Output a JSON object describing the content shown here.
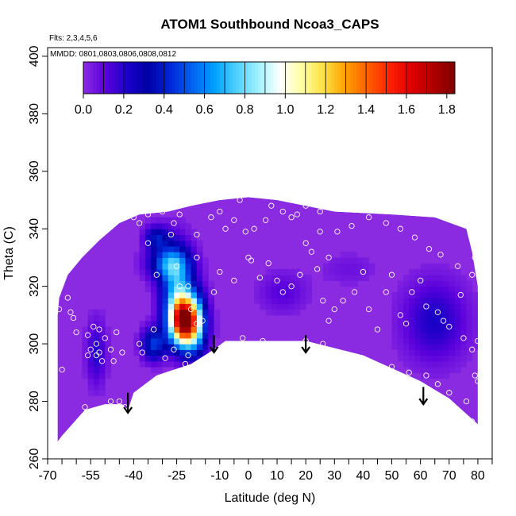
{
  "chart_data": {
    "type": "heatmap",
    "title": "ATOM1 Southbound Ncoa3_CAPS",
    "subtitle_flights": "Flts: 2,3,4,5,6",
    "subtitle_dates": "MMDD: 0801,0803,0806,0808,0812",
    "xlabel": "Latitude (deg N)",
    "ylabel": "Theta (C)",
    "xlim": [
      -70,
      85
    ],
    "ylim": [
      260,
      403
    ],
    "x_tick_labels": [
      "-70",
      "-55",
      "-40",
      "-25",
      "-10",
      "0",
      "10",
      "20",
      "30",
      "40",
      "50",
      "60",
      "70",
      "80"
    ],
    "x_tick_values": [
      -70,
      -55,
      -40,
      -25,
      -10,
      0,
      10,
      20,
      30,
      40,
      50,
      60,
      70,
      80
    ],
    "x_minor_ticks": [
      -65,
      -60,
      -50,
      -45,
      -35,
      -30,
      -20,
      -15,
      -5,
      5,
      15,
      25,
      35,
      45,
      55,
      65,
      75,
      85
    ],
    "y_tick_labels": [
      "260",
      "280",
      "300",
      "320",
      "340",
      "360",
      "380",
      "400"
    ],
    "y_tick_values": [
      260,
      280,
      300,
      320,
      340,
      360,
      380,
      400
    ],
    "colorbar": {
      "tick_labels": [
        "0.0",
        "0.2",
        "0.4",
        "0.6",
        "0.8",
        "1.0",
        "1.2",
        "1.4",
        "1.6",
        "1.8"
      ],
      "tick_values": [
        0,
        0.2,
        0.4,
        0.6,
        0.8,
        1.0,
        1.2,
        1.4,
        1.6,
        1.8
      ],
      "range": [
        0,
        1.84
      ],
      "colors": [
        "#8a2be2",
        "#5a00dc",
        "#1a00c8",
        "#0000a8",
        "#0028d8",
        "#0064f0",
        "#00a0ff",
        "#50d0ff",
        "#a0f0ff",
        "#ffffff",
        "#ffffa0",
        "#ffe040",
        "#ffa000",
        "#ff6000",
        "#ff2000",
        "#e00000",
        "#b00000",
        "#800000"
      ]
    },
    "domain_outline": [
      [
        -66.5,
        266
      ],
      [
        -65,
        268
      ],
      [
        -57,
        277
      ],
      [
        -50,
        279
      ],
      [
        -44,
        279
      ],
      [
        -42,
        277
      ],
      [
        -40,
        283
      ],
      [
        -32,
        289
      ],
      [
        -20,
        293
      ],
      [
        -12,
        298
      ],
      [
        -8,
        301
      ],
      [
        0,
        301
      ],
      [
        20,
        301
      ],
      [
        40,
        296
      ],
      [
        60,
        287
      ],
      [
        70,
        281
      ],
      [
        80,
        272
      ],
      [
        80,
        320
      ],
      [
        78,
        332
      ],
      [
        76,
        340
      ],
      [
        65,
        344
      ],
      [
        50,
        345
      ],
      [
        30,
        346
      ],
      [
        10,
        350
      ],
      [
        0,
        351
      ],
      [
        -10,
        350
      ],
      [
        -20,
        348
      ],
      [
        -28,
        346
      ],
      [
        -38,
        345
      ],
      [
        -45,
        342
      ],
      [
        -52,
        336
      ],
      [
        -58,
        330
      ],
      [
        -63,
        324
      ],
      [
        -66,
        316
      ],
      [
        -66.5,
        310
      ]
    ],
    "blobs": [
      {
        "x": -22.5,
        "y": 308,
        "sx": 3.5,
        "sy": 6,
        "amp": 1.7
      },
      {
        "x": -25,
        "y": 320,
        "sx": 4,
        "sy": 10,
        "amp": 0.55
      },
      {
        "x": -28,
        "y": 328,
        "sx": 5,
        "sy": 4,
        "amp": 0.45
      },
      {
        "x": -32,
        "y": 337,
        "sx": 3,
        "sy": 3,
        "amp": 0.35
      },
      {
        "x": -33,
        "y": 300,
        "sx": 3,
        "sy": 4,
        "amp": 0.45
      },
      {
        "x": -18,
        "y": 306,
        "sx": 3,
        "sy": 8,
        "amp": 0.45
      },
      {
        "x": -53,
        "y": 297,
        "sx": 2.5,
        "sy": 8,
        "amp": 0.2
      },
      {
        "x": 65,
        "y": 308,
        "sx": 8,
        "sy": 10,
        "amp": 0.22
      },
      {
        "x": 12,
        "y": 318,
        "sx": 6,
        "sy": 5,
        "amp": 0.12
      },
      {
        "x": 35,
        "y": 326,
        "sx": 7,
        "sy": 4,
        "amp": 0.07
      }
    ],
    "observation_points": [
      [
        -66,
        312
      ],
      [
        -65,
        291
      ],
      [
        -62,
        311
      ],
      [
        -61,
        309
      ],
      [
        -56,
        296
      ],
      [
        -56,
        303
      ],
      [
        -53,
        300
      ],
      [
        -52,
        297
      ],
      [
        -51,
        294
      ],
      [
        -48,
        298
      ],
      [
        -47,
        294
      ],
      [
        -46,
        304
      ],
      [
        -44,
        297
      ],
      [
        -43,
        278
      ],
      [
        -45,
        280
      ],
      [
        -48,
        280
      ],
      [
        -57,
        278
      ],
      [
        -54,
        306
      ],
      [
        -52,
        305
      ],
      [
        -50,
        302
      ],
      [
        -55,
        298
      ],
      [
        -53,
        296
      ],
      [
        -63,
        316
      ],
      [
        -60,
        304
      ],
      [
        -38,
        283
      ],
      [
        -37,
        297
      ],
      [
        -38,
        300
      ],
      [
        -33,
        305
      ],
      [
        -29,
        295
      ],
      [
        -26,
        298
      ],
      [
        -22,
        293
      ],
      [
        -21,
        296
      ],
      [
        -20,
        312
      ],
      [
        -18,
        307
      ],
      [
        -24,
        320
      ],
      [
        -25,
        327
      ],
      [
        -21,
        320
      ],
      [
        -16,
        308
      ],
      [
        -12,
        318
      ],
      [
        -18,
        330
      ],
      [
        -18,
        338
      ],
      [
        -27,
        338
      ],
      [
        -35,
        335
      ],
      [
        -32,
        324
      ],
      [
        -30,
        346
      ],
      [
        -26,
        342
      ],
      [
        -24,
        345
      ],
      [
        -40,
        344
      ],
      [
        -38,
        342
      ],
      [
        -35,
        345
      ],
      [
        -13,
        344
      ],
      [
        -10,
        346
      ],
      [
        -8,
        340
      ],
      [
        -5,
        343
      ],
      [
        -3,
        350
      ],
      [
        -1,
        339
      ],
      [
        2,
        340
      ],
      [
        6,
        343
      ],
      [
        8,
        348
      ],
      [
        12,
        346
      ],
      [
        15,
        344
      ],
      [
        17,
        345
      ],
      [
        20,
        348
      ],
      [
        25,
        346
      ],
      [
        -10,
        325
      ],
      [
        -5,
        322
      ],
      [
        0,
        330
      ],
      [
        1,
        329
      ],
      [
        4,
        323
      ],
      [
        7,
        328
      ],
      [
        10,
        322
      ],
      [
        12,
        318
      ],
      [
        15,
        320
      ],
      [
        18,
        324
      ],
      [
        20,
        335
      ],
      [
        22,
        332
      ],
      [
        25,
        339
      ],
      [
        26,
        315
      ],
      [
        28,
        308
      ],
      [
        30,
        312
      ],
      [
        33,
        315
      ],
      [
        37,
        318
      ],
      [
        40,
        325
      ],
      [
        42,
        312
      ],
      [
        45,
        305
      ],
      [
        48,
        318
      ],
      [
        50,
        324
      ],
      [
        53,
        310
      ],
      [
        55,
        307
      ],
      [
        -2,
        302
      ],
      [
        0,
        300
      ],
      [
        5,
        301
      ],
      [
        10,
        300
      ],
      [
        15,
        300
      ],
      [
        20,
        301
      ],
      [
        26,
        300
      ],
      [
        30,
        297
      ],
      [
        35,
        296
      ],
      [
        40,
        294
      ],
      [
        44,
        291
      ],
      [
        50,
        292
      ],
      [
        56,
        290
      ],
      [
        62,
        289
      ],
      [
        66,
        286
      ],
      [
        70,
        283
      ],
      [
        76,
        280
      ],
      [
        78,
        273
      ],
      [
        57,
        318
      ],
      [
        60,
        322
      ],
      [
        62,
        313
      ],
      [
        66,
        311
      ],
      [
        68,
        308
      ],
      [
        70,
        306
      ],
      [
        75,
        302
      ],
      [
        78,
        298
      ],
      [
        80,
        301
      ],
      [
        79,
        289
      ],
      [
        80,
        287
      ],
      [
        74,
        317
      ],
      [
        78,
        324
      ],
      [
        79,
        330
      ],
      [
        73,
        327
      ],
      [
        67,
        331
      ],
      [
        63,
        333
      ],
      [
        58,
        337
      ],
      [
        53,
        340
      ],
      [
        48,
        342
      ],
      [
        42,
        344
      ],
      [
        36,
        341
      ],
      [
        31,
        339
      ],
      [
        28,
        330
      ],
      [
        24,
        326
      ]
    ],
    "arrows": [
      {
        "x": -42,
        "y_top": 283,
        "y_bottom": 276
      },
      {
        "x": -12,
        "y_top": 303,
        "y_bottom": 297
      },
      {
        "x": 20,
        "y_top": 303,
        "y_bottom": 297
      },
      {
        "x": 61,
        "y_top": 285,
        "y_bottom": 279
      }
    ]
  }
}
